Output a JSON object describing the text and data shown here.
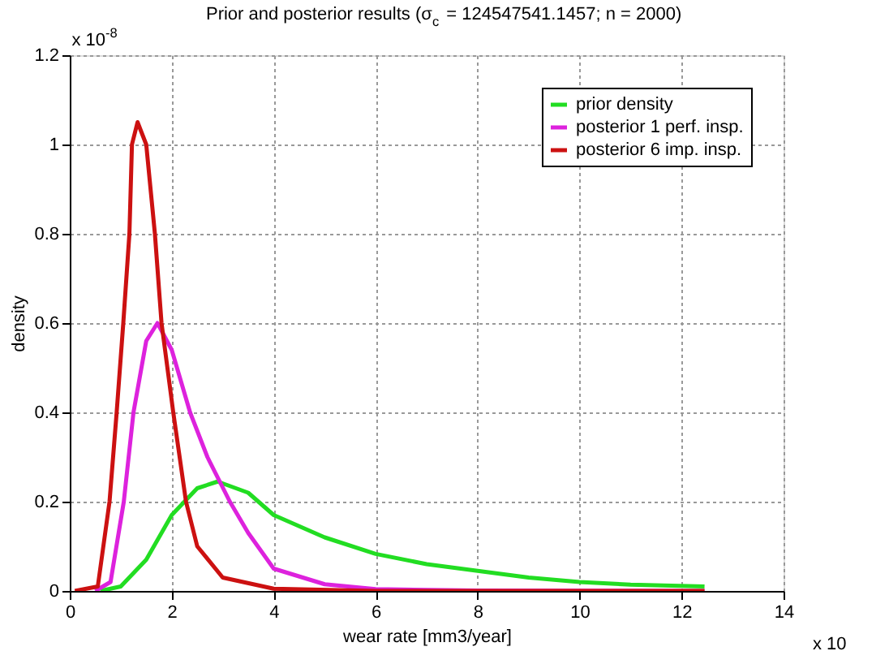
{
  "chart_data": {
    "type": "line",
    "title": "Prior and posterior results (σ$_{c}$ = 124547541.1457; n = 2000)",
    "xlabel": "wear rate [mm3/year]",
    "ylabel": "density",
    "annotations": [
      "x 10$^{-8}$",
      "x 10"
    ],
    "xlim": [
      0,
      14
    ],
    "xticks": [
      0,
      2,
      4,
      6,
      8,
      10,
      12,
      14
    ],
    "ylim": [
      0,
      1.2
    ],
    "yticks": [
      0,
      0.2,
      0.4,
      0.6,
      0.8,
      1,
      1.2
    ],
    "grid": true,
    "legend": "top right",
    "line_style": "solid",
    "marker": "none",
    "series": [
      {
        "name": "prior density",
        "color": "#22dd22",
        "x": [
          0.6,
          1.0,
          1.5,
          2.0,
          2.5,
          2.9,
          3.5,
          4.0,
          5.0,
          6.0,
          7.0,
          8.0,
          9.0,
          10.0,
          11.0,
          12.45
        ],
        "values": [
          0,
          0.01,
          0.07,
          0.17,
          0.23,
          0.245,
          0.22,
          0.17,
          0.12,
          0.083,
          0.06,
          0.045,
          0.03,
          0.02,
          0.014,
          0.01
        ]
      },
      {
        "name": "posterior 1 perf. insp.",
        "color": "#dd22dd",
        "x": [
          0.5,
          0.8,
          1.06,
          1.25,
          1.5,
          1.72,
          2.0,
          2.36,
          2.7,
          3.14,
          3.5,
          4.0,
          5.0,
          6.0,
          8.0,
          12.45
        ],
        "values": [
          0,
          0.02,
          0.2,
          0.4,
          0.56,
          0.6,
          0.54,
          0.4,
          0.3,
          0.2,
          0.13,
          0.05,
          0.015,
          0.004,
          0.001,
          0
        ]
      },
      {
        "name": "posterior 6 imp. insp.",
        "color": "#cc1111",
        "x": [
          0.1,
          0.55,
          0.78,
          0.92,
          1.05,
          1.17,
          1.22,
          1.33,
          1.5,
          1.67,
          1.8,
          2.03,
          2.28,
          2.5,
          3.0,
          4.0,
          6.0,
          12.45
        ],
        "values": [
          0,
          0.01,
          0.2,
          0.4,
          0.6,
          0.8,
          1.0,
          1.05,
          1.0,
          0.8,
          0.6,
          0.4,
          0.2,
          0.1,
          0.03,
          0.005,
          0,
          0
        ]
      }
    ]
  }
}
